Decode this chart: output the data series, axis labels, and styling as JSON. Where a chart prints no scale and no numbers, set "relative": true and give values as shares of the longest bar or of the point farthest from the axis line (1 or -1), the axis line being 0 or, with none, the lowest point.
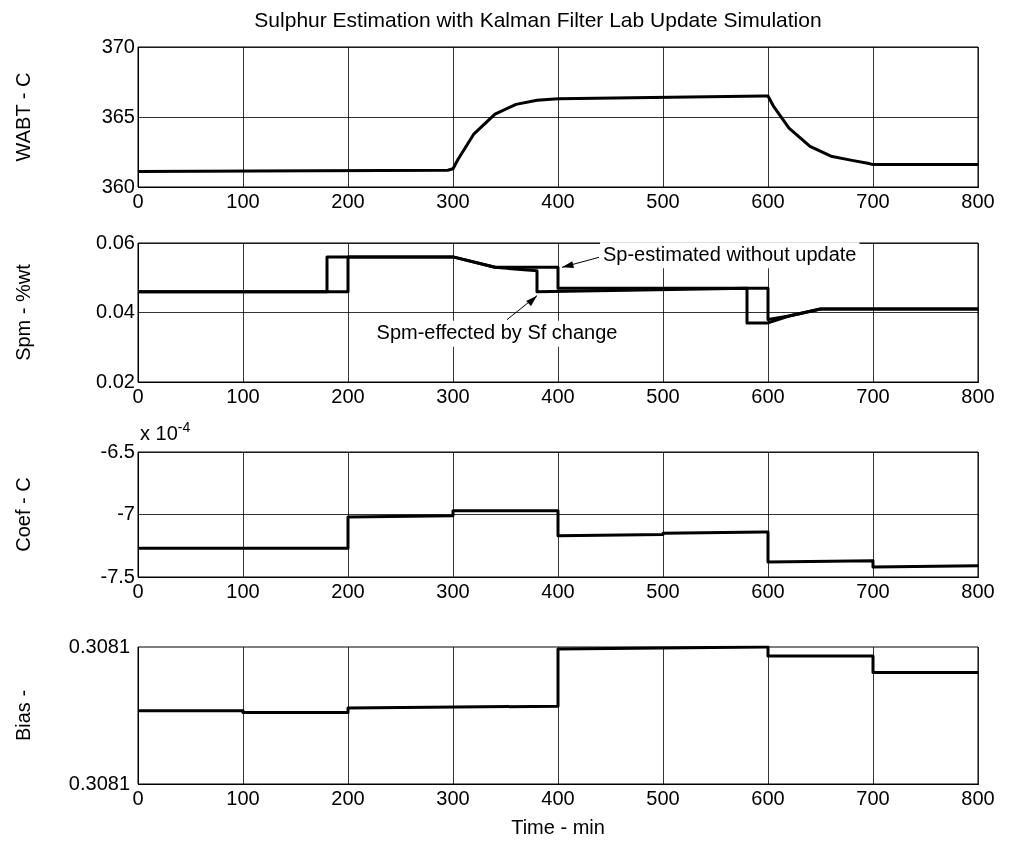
{
  "chart_data": [
    {
      "type": "line",
      "title": "Sulphur Estimation with Kalman Filter Lab Update Simulation",
      "ylabel": "WABT - C",
      "xlim": [
        0,
        800
      ],
      "xticks": [
        0,
        100,
        200,
        300,
        400,
        500,
        600,
        700,
        800
      ],
      "ylim": [
        360,
        370
      ],
      "yticks": [
        360,
        365,
        370
      ],
      "grid": true,
      "marker": "none",
      "series": [
        {
          "color": "#000000",
          "x": [
            0,
            295,
            300,
            305,
            320,
            340,
            360,
            380,
            400,
            600,
            605,
            620,
            640,
            660,
            680,
            695,
            700,
            800
          ],
          "values": [
            361.1,
            361.2,
            361.3,
            362.0,
            363.8,
            365.2,
            365.9,
            366.2,
            366.3,
            366.5,
            365.8,
            364.2,
            362.9,
            362.2,
            361.9,
            361.7,
            361.6,
            361.6
          ]
        }
      ]
    },
    {
      "type": "line",
      "ylabel": "Spm - %wt",
      "xlim": [
        0,
        800
      ],
      "xticks": [
        0,
        100,
        200,
        300,
        400,
        500,
        600,
        700,
        800
      ],
      "ylim": [
        0.02,
        0.06
      ],
      "yticks": [
        0.02,
        0.04,
        0.06
      ],
      "grid": true,
      "marker": "none",
      "annotations": [
        {
          "text": "Sp-estimated without update",
          "x": 400,
          "y": 0.053
        },
        {
          "text": "Spm-effected by Sf change",
          "x": 380,
          "y": 0.046
        }
      ],
      "series": [
        {
          "color": "#000000",
          "x": [
            0,
            180,
            180,
            300,
            340,
            380,
            380,
            580,
            580,
            600,
            620,
            650,
            700,
            800
          ],
          "values": [
            0.046,
            0.046,
            0.056,
            0.056,
            0.053,
            0.052,
            0.046,
            0.047,
            0.037,
            0.037,
            0.039,
            0.041,
            0.041,
            0.041
          ]
        },
        {
          "color": "#000000",
          "x": [
            0,
            200,
            200,
            300,
            340,
            400,
            400,
            600,
            600,
            620,
            650,
            700,
            800
          ],
          "values": [
            0.046,
            0.046,
            0.056,
            0.056,
            0.053,
            0.053,
            0.047,
            0.047,
            0.038,
            0.039,
            0.041,
            0.041,
            0.041
          ]
        }
      ]
    },
    {
      "type": "line",
      "ylabel": "Coef - C",
      "xlim": [
        0,
        800
      ],
      "xticks": [
        0,
        100,
        200,
        300,
        400,
        500,
        600,
        700,
        800
      ],
      "ylim": [
        -7.5,
        -6.5
      ],
      "yticks": [
        -7.5,
        -7,
        -6.5
      ],
      "grid": true,
      "marker": "none",
      "annotations": [
        "x 10$^{-4}$"
      ],
      "series": [
        {
          "color": "#000000",
          "x": [
            0,
            200,
            200,
            300,
            300,
            400,
            400,
            500,
            500,
            600,
            600,
            700,
            700,
            800
          ],
          "values": [
            -7.27,
            -7.27,
            -7.02,
            -7.01,
            -6.97,
            -6.97,
            -7.17,
            -7.16,
            -7.15,
            -7.14,
            -7.38,
            -7.37,
            -7.42,
            -7.41
          ]
        }
      ]
    },
    {
      "type": "line",
      "ylabel": "Bias -",
      "xlabel": "Time - min",
      "xlim": [
        0,
        800
      ],
      "xticks": [
        0,
        100,
        200,
        300,
        400,
        500,
        600,
        700,
        800
      ],
      "relative": true,
      "grid": "x",
      "marker": "none",
      "annotations": [
        "0.3081",
        "0.3081"
      ],
      "series": [
        {
          "color": "#000000",
          "x": [
            0,
            100,
            100,
            200,
            200,
            400,
            400,
            600,
            600,
            700,
            700,
            800
          ],
          "values": [
            0.535,
            0.535,
            0.521,
            0.521,
            0.554,
            0.568,
            0.985,
            1,
            0.934,
            0.934,
            0.814,
            0.814
          ]
        }
      ]
    }
  ]
}
